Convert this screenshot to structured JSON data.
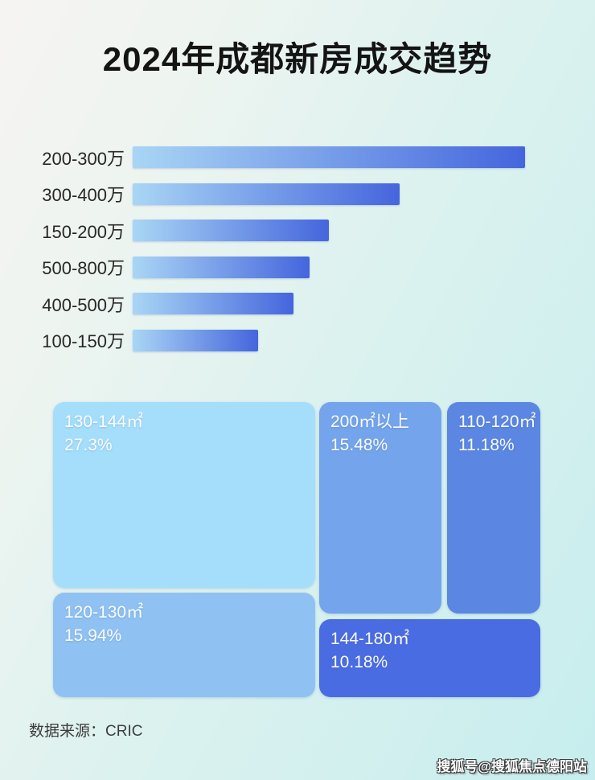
{
  "page": {
    "title": "2024年成都新房成交趋势",
    "source_note": "数据来源：CRIC",
    "watermark": "搜狐号@搜狐焦点德阳站"
  },
  "colors": {
    "background_start": "#f6f4f2",
    "background_end": "#c7edee",
    "bar_gradient_start": "#a9d6f5",
    "bar_gradient_end": "#4565dd",
    "title_text": "#141414",
    "bar_label_text": "#272727",
    "tile_text": "#ffffff"
  },
  "chart_data": [
    {
      "type": "bar",
      "orientation": "horizontal",
      "title": "",
      "categories": [
        "200-300万",
        "300-400万",
        "150-200万",
        "500-800万",
        "400-500万",
        "100-150万"
      ],
      "values": [
        100,
        68,
        50,
        45,
        41,
        32
      ],
      "values_note": "bars carry no printed numbers; values are relative bar lengths with longest bar = 100",
      "xlabel": "",
      "ylabel": "",
      "axis_ticks_visible": false,
      "grid": false,
      "legend": false
    },
    {
      "type": "treemap",
      "title": "",
      "tiles": [
        {
          "label": "130-144㎡",
          "value_pct": 27.3,
          "value_text": "27.3%",
          "color": "#a5defb"
        },
        {
          "label": "120-130㎡",
          "value_pct": 15.94,
          "value_text": "15.94%",
          "color": "#8fc2f2"
        },
        {
          "label": "200㎡以上",
          "value_pct": 15.48,
          "value_text": "15.48%",
          "color": "#74a4ec"
        },
        {
          "label": "110-120㎡",
          "value_pct": 11.18,
          "value_text": "11.18%",
          "color": "#5b87e3"
        },
        {
          "label": "144-180㎡",
          "value_pct": 10.18,
          "value_text": "10.18%",
          "color": "#4a6ce2"
        }
      ],
      "legend": false
    }
  ]
}
